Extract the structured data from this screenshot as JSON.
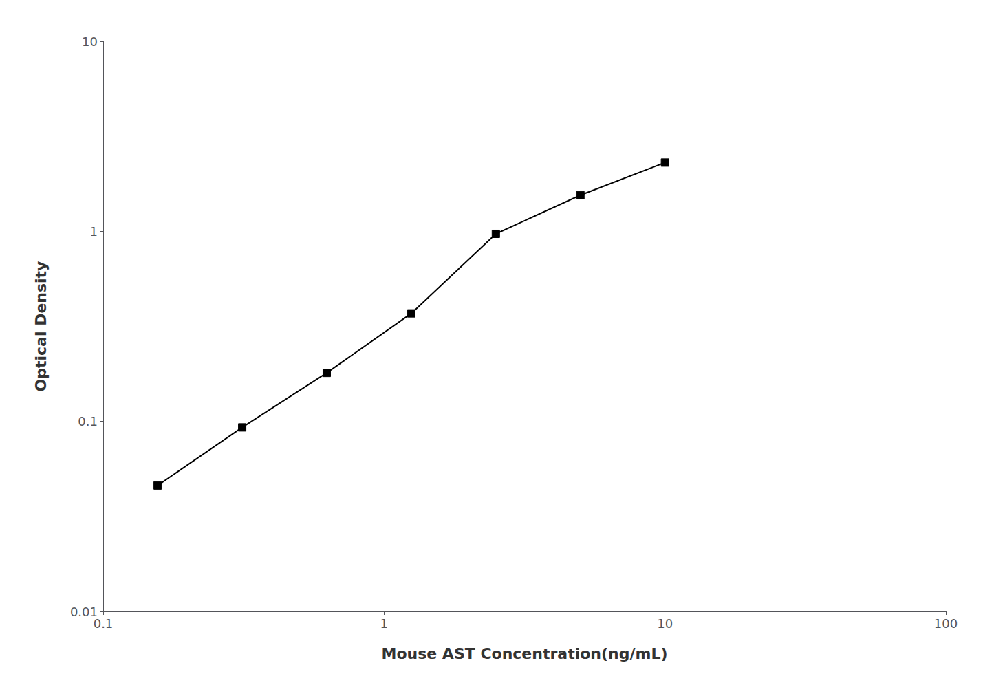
{
  "chart_data": {
    "type": "line",
    "x": [
      0.15625,
      0.3125,
      0.625,
      1.25,
      2.5,
      5.0,
      10.0
    ],
    "values": [
      0.046,
      0.093,
      0.18,
      0.37,
      0.97,
      1.55,
      2.3
    ],
    "xlabel": "Mouse AST Concentration(ng/mL)",
    "ylabel": "Optical Density",
    "xlim": [
      0.1,
      100
    ],
    "ylim": [
      0.01,
      10
    ],
    "xticks": [
      0.1,
      1,
      10,
      100
    ],
    "yticks": [
      0.01,
      0.1,
      1,
      10
    ],
    "log": true,
    "grid": false,
    "color": "#000000",
    "marker": "square"
  }
}
